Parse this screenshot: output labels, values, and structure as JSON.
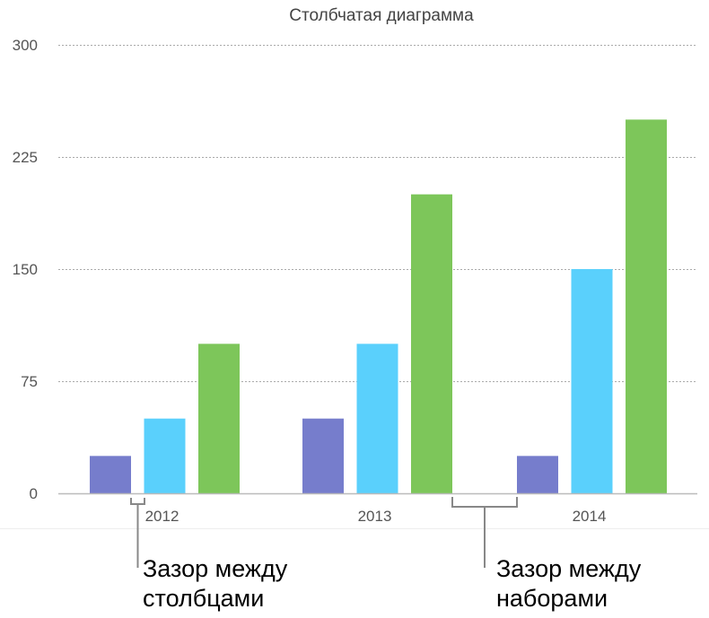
{
  "chart_data": {
    "type": "bar",
    "title": "Столбчатая диаграмма",
    "categories": [
      "2012",
      "2013",
      "2014"
    ],
    "series": [
      {
        "values": [
          25,
          50,
          25
        ],
        "color": "#767dcc"
      },
      {
        "values": [
          50,
          100,
          150
        ],
        "color": "#5ad0fc"
      },
      {
        "values": [
          100,
          200,
          250
        ],
        "color": "#7dc65a"
      }
    ],
    "yticks": [
      0,
      75,
      150,
      225,
      300
    ],
    "ylim": [
      0,
      300
    ],
    "grid": true,
    "gridline_style": "dotted",
    "legend": "none"
  },
  "annotations": {
    "bar_gap": [
      "Зазор между",
      "столбцами"
    ],
    "set_gap": [
      "Зазор между",
      "наборами"
    ]
  }
}
